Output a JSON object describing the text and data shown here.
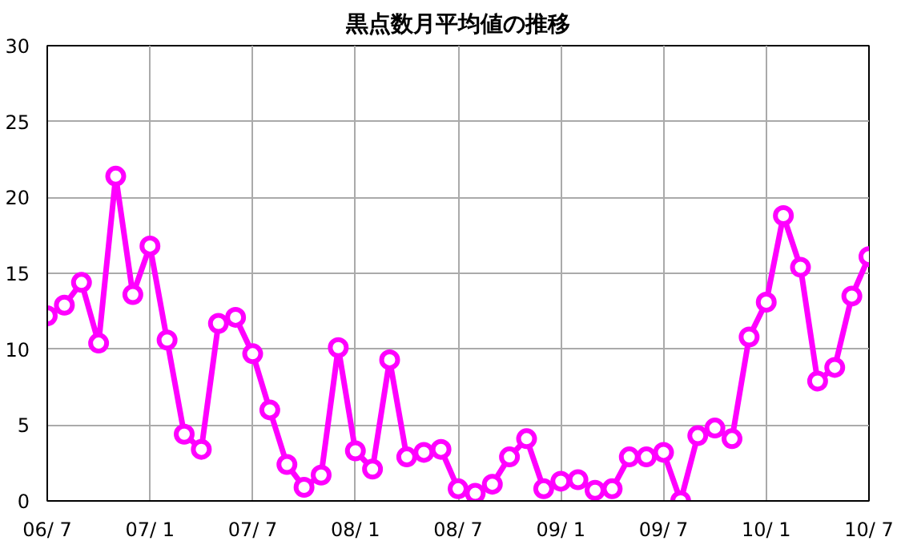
{
  "chart_data": {
    "type": "line",
    "title": "黒点数月平均値の推移",
    "categories": [
      "06/ 7",
      null,
      null,
      null,
      null,
      null,
      "07/ 1",
      null,
      null,
      null,
      null,
      null,
      "07/ 7",
      null,
      null,
      null,
      null,
      null,
      "08/ 1",
      null,
      null,
      null,
      null,
      null,
      "08/ 7",
      null,
      null,
      null,
      null,
      null,
      "09/ 1",
      null,
      null,
      null,
      null,
      null,
      "09/ 7",
      null,
      null,
      null,
      null,
      null,
      "10/ 1",
      null,
      null,
      null,
      null,
      null,
      "10/ 7"
    ],
    "series": [
      {
        "color": "#ff00ff",
        "values": [
          12.2,
          12.9,
          14.4,
          10.4,
          21.4,
          13.6,
          16.8,
          10.6,
          4.4,
          3.4,
          11.7,
          12.1,
          9.7,
          6.0,
          2.4,
          0.9,
          1.7,
          10.1,
          3.3,
          2.1,
          9.3,
          2.9,
          3.2,
          3.4,
          0.8,
          0.5,
          1.1,
          2.9,
          4.1,
          0.8,
          1.3,
          1.4,
          0.7,
          0.8,
          2.9,
          2.9,
          3.2,
          0.0,
          4.3,
          4.8,
          4.1,
          10.8,
          13.1,
          18.8,
          15.4,
          7.9,
          8.8,
          13.5,
          16.1
        ]
      }
    ],
    "ylim": [
      0,
      30
    ],
    "yticks": [
      0,
      5,
      10,
      15,
      20,
      25,
      30
    ],
    "grid": true,
    "marker": "circle",
    "line_style": "solid"
  }
}
